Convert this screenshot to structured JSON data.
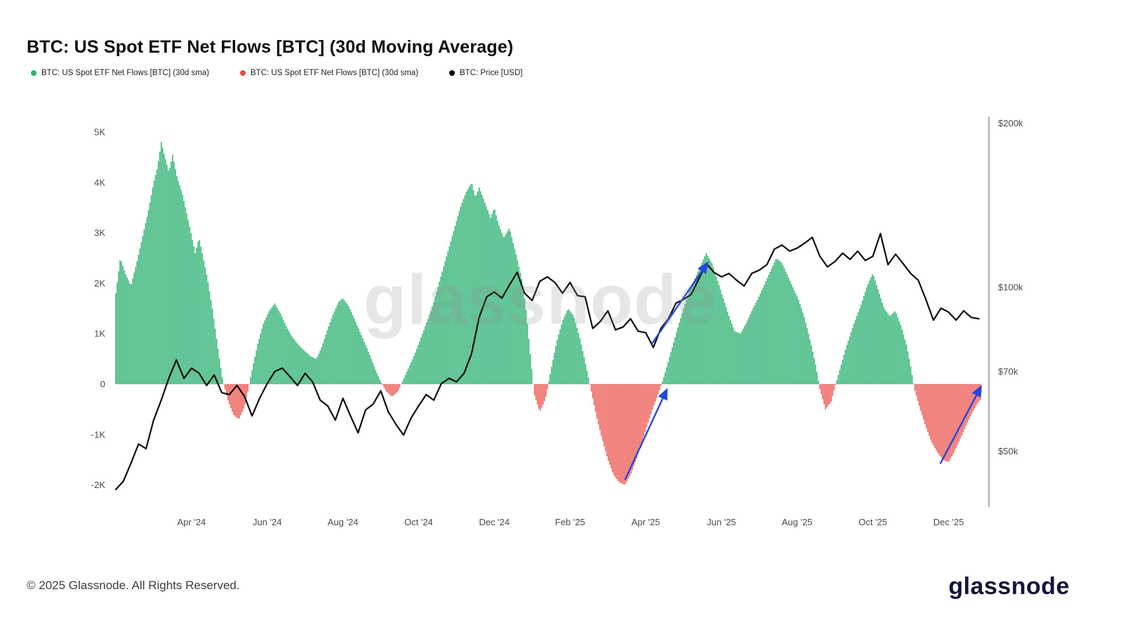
{
  "title": "BTC: US Spot ETF Net Flows [BTC] (30d Moving Average)",
  "legend": [
    {
      "label": "BTC: US Spot ETF Net Flows [BTC] (30d sma)",
      "color": "#2eb271"
    },
    {
      "label": "BTC: US Spot ETF Net Flows [BTC] (30d sma)",
      "color": "#e24a45"
    },
    {
      "label": "BTC: Price [USD]",
      "color": "#000000"
    }
  ],
  "watermark": "glassnode",
  "footer": {
    "copyright": "© 2025 Glassnode. All Rights Reserved.",
    "brand": "glassnode"
  },
  "chart_data": {
    "type": "bar+line",
    "title": "BTC: US Spot ETF Net Flows [BTC] (30d Moving Average)",
    "x_unit": "months since Feb 2024 (t=0 -> Feb '24)",
    "x_range": [
      0,
      22.9
    ],
    "x_ticks": [
      {
        "t": 2,
        "label": "Apr '24"
      },
      {
        "t": 4,
        "label": "Jun '24"
      },
      {
        "t": 6,
        "label": "Aug '24"
      },
      {
        "t": 8,
        "label": "Oct '24"
      },
      {
        "t": 10,
        "label": "Dec '24"
      },
      {
        "t": 12,
        "label": "Feb '25"
      },
      {
        "t": 14,
        "label": "Apr '25"
      },
      {
        "t": 16,
        "label": "Jun '25"
      },
      {
        "t": 18,
        "label": "Aug '25"
      },
      {
        "t": 20,
        "label": "Oct '25"
      },
      {
        "t": 22,
        "label": "Dec '25"
      }
    ],
    "left_axis": {
      "title": "Net Flows (BTC, 30d sma)",
      "ticks": [
        {
          "value": 5000,
          "label": "5K"
        },
        {
          "value": 4000,
          "label": "4K"
        },
        {
          "value": 3000,
          "label": "3K"
        },
        {
          "value": 2000,
          "label": "2K"
        },
        {
          "value": 1000,
          "label": "1K"
        },
        {
          "value": 0,
          "label": "0"
        },
        {
          "value": -1000,
          "label": "-1K"
        },
        {
          "value": -2000,
          "label": "-2K"
        }
      ]
    },
    "right_axis": {
      "title": "BTC Price (USD, log scale)",
      "ticks": [
        {
          "value": 200000,
          "label": "$200k"
        },
        {
          "value": 100000,
          "label": "$100k"
        },
        {
          "value": 70000,
          "label": "$70k"
        },
        {
          "value": 50000,
          "label": "$50k"
        }
      ]
    },
    "bar_colors": {
      "positive": "#2eb271",
      "negative": "#ec5a54"
    },
    "line_color": "#0d0d0d",
    "annotation_color": "#2447e0",
    "sampling_note": "flows_sma_btc are keyframes [t_months, net_flow_btc] read off the chart; daily bars are linearly interpolated between keyframes. price_usd are [t_months, price_usd] points.",
    "flows_sma_btc": [
      [
        0,
        1800
      ],
      [
        0.12,
        2500
      ],
      [
        0.25,
        2200
      ],
      [
        0.4,
        1950
      ],
      [
        0.55,
        2400
      ],
      [
        0.7,
        2900
      ],
      [
        0.85,
        3400
      ],
      [
        1.0,
        4000
      ],
      [
        1.1,
        4300
      ],
      [
        1.2,
        4800
      ],
      [
        1.3,
        4500
      ],
      [
        1.4,
        4200
      ],
      [
        1.5,
        4550
      ],
      [
        1.62,
        4100
      ],
      [
        1.75,
        3800
      ],
      [
        1.9,
        3300
      ],
      [
        2.0,
        2950
      ],
      [
        2.1,
        2600
      ],
      [
        2.2,
        2900
      ],
      [
        2.3,
        2550
      ],
      [
        2.42,
        2100
      ],
      [
        2.55,
        1500
      ],
      [
        2.7,
        700
      ],
      [
        2.82,
        100
      ],
      [
        2.95,
        -300
      ],
      [
        3.1,
        -600
      ],
      [
        3.25,
        -700
      ],
      [
        3.4,
        -450
      ],
      [
        3.5,
        -100
      ],
      [
        3.62,
        350
      ],
      [
        3.75,
        800
      ],
      [
        3.9,
        1200
      ],
      [
        4.05,
        1450
      ],
      [
        4.2,
        1600
      ],
      [
        4.35,
        1400
      ],
      [
        4.5,
        1150
      ],
      [
        4.65,
        950
      ],
      [
        4.8,
        800
      ],
      [
        5.0,
        650
      ],
      [
        5.15,
        550
      ],
      [
        5.3,
        500
      ],
      [
        5.45,
        750
      ],
      [
        5.6,
        1100
      ],
      [
        5.75,
        1400
      ],
      [
        5.9,
        1650
      ],
      [
        6.0,
        1700
      ],
      [
        6.15,
        1550
      ],
      [
        6.3,
        1300
      ],
      [
        6.5,
        950
      ],
      [
        6.7,
        600
      ],
      [
        6.85,
        300
      ],
      [
        7.0,
        50
      ],
      [
        7.15,
        -150
      ],
      [
        7.3,
        -250
      ],
      [
        7.45,
        -150
      ],
      [
        7.6,
        100
      ],
      [
        7.75,
        350
      ],
      [
        7.9,
        600
      ],
      [
        8.05,
        900
      ],
      [
        8.2,
        1200
      ],
      [
        8.35,
        1500
      ],
      [
        8.5,
        1900
      ],
      [
        8.65,
        2300
      ],
      [
        8.8,
        2700
      ],
      [
        8.95,
        3100
      ],
      [
        9.1,
        3500
      ],
      [
        9.25,
        3800
      ],
      [
        9.4,
        4000
      ],
      [
        9.5,
        3700
      ],
      [
        9.6,
        3900
      ],
      [
        9.75,
        3600
      ],
      [
        9.9,
        3300
      ],
      [
        10.0,
        3500
      ],
      [
        10.1,
        3200
      ],
      [
        10.25,
        2900
      ],
      [
        10.4,
        3100
      ],
      [
        10.5,
        2800
      ],
      [
        10.6,
        2500
      ],
      [
        10.75,
        2000
      ],
      [
        10.85,
        1400
      ],
      [
        10.95,
        600
      ],
      [
        11.05,
        -200
      ],
      [
        11.2,
        -550
      ],
      [
        11.35,
        -300
      ],
      [
        11.5,
        300
      ],
      [
        11.65,
        850
      ],
      [
        11.8,
        1250
      ],
      [
        11.95,
        1500
      ],
      [
        12.1,
        1350
      ],
      [
        12.25,
        950
      ],
      [
        12.4,
        450
      ],
      [
        12.55,
        -100
      ],
      [
        12.7,
        -650
      ],
      [
        12.85,
        -1100
      ],
      [
        13.0,
        -1500
      ],
      [
        13.15,
        -1800
      ],
      [
        13.3,
        -1950
      ],
      [
        13.45,
        -2000
      ],
      [
        13.6,
        -1800
      ],
      [
        13.75,
        -1500
      ],
      [
        13.9,
        -1150
      ],
      [
        14.05,
        -800
      ],
      [
        14.2,
        -450
      ],
      [
        14.35,
        -150
      ],
      [
        14.5,
        200
      ],
      [
        14.65,
        600
      ],
      [
        14.8,
        1000
      ],
      [
        15.0,
        1500
      ],
      [
        15.15,
        1850
      ],
      [
        15.3,
        2100
      ],
      [
        15.45,
        2350
      ],
      [
        15.6,
        2600
      ],
      [
        15.75,
        2400
      ],
      [
        15.9,
        2050
      ],
      [
        16.05,
        1700
      ],
      [
        16.2,
        1350
      ],
      [
        16.35,
        1050
      ],
      [
        16.5,
        1000
      ],
      [
        16.65,
        1200
      ],
      [
        16.8,
        1450
      ],
      [
        17.0,
        1750
      ],
      [
        17.15,
        2000
      ],
      [
        17.3,
        2250
      ],
      [
        17.45,
        2500
      ],
      [
        17.6,
        2400
      ],
      [
        17.75,
        2150
      ],
      [
        17.9,
        1900
      ],
      [
        18.05,
        1650
      ],
      [
        18.2,
        1300
      ],
      [
        18.35,
        850
      ],
      [
        18.5,
        350
      ],
      [
        18.6,
        -100
      ],
      [
        18.75,
        -500
      ],
      [
        18.9,
        -350
      ],
      [
        19.0,
        -50
      ],
      [
        19.15,
        350
      ],
      [
        19.3,
        750
      ],
      [
        19.5,
        1200
      ],
      [
        19.7,
        1600
      ],
      [
        19.85,
        1950
      ],
      [
        20.0,
        2200
      ],
      [
        20.15,
        1850
      ],
      [
        20.3,
        1500
      ],
      [
        20.45,
        1350
      ],
      [
        20.6,
        1450
      ],
      [
        20.75,
        1150
      ],
      [
        20.9,
        750
      ],
      [
        21.0,
        350
      ],
      [
        21.1,
        -100
      ],
      [
        21.25,
        -500
      ],
      [
        21.4,
        -850
      ],
      [
        21.55,
        -1150
      ],
      [
        21.7,
        -1350
      ],
      [
        21.85,
        -1500
      ],
      [
        22.0,
        -1550
      ],
      [
        22.15,
        -1350
      ],
      [
        22.3,
        -1100
      ],
      [
        22.45,
        -850
      ],
      [
        22.6,
        -600
      ],
      [
        22.75,
        -400
      ],
      [
        22.85,
        -300
      ]
    ],
    "price_usd": [
      [
        0,
        42500
      ],
      [
        0.2,
        44000
      ],
      [
        0.4,
        47500
      ],
      [
        0.6,
        51500
      ],
      [
        0.8,
        50500
      ],
      [
        1.0,
        57000
      ],
      [
        1.2,
        62000
      ],
      [
        1.4,
        68000
      ],
      [
        1.6,
        73500
      ],
      [
        1.8,
        68000
      ],
      [
        2.0,
        71000
      ],
      [
        2.2,
        69500
      ],
      [
        2.4,
        66000
      ],
      [
        2.6,
        69000
      ],
      [
        2.8,
        64000
      ],
      [
        3.0,
        63500
      ],
      [
        3.2,
        66000
      ],
      [
        3.4,
        63000
      ],
      [
        3.6,
        58000
      ],
      [
        3.8,
        62500
      ],
      [
        4.0,
        66500
      ],
      [
        4.2,
        70000
      ],
      [
        4.4,
        71000
      ],
      [
        4.6,
        68500
      ],
      [
        4.8,
        66000
      ],
      [
        5.0,
        69500
      ],
      [
        5.2,
        67000
      ],
      [
        5.4,
        62000
      ],
      [
        5.6,
        60500
      ],
      [
        5.8,
        57000
      ],
      [
        6.0,
        62500
      ],
      [
        6.2,
        58000
      ],
      [
        6.4,
        54000
      ],
      [
        6.6,
        59500
      ],
      [
        6.8,
        61000
      ],
      [
        7.0,
        64500
      ],
      [
        7.2,
        59000
      ],
      [
        7.4,
        56000
      ],
      [
        7.6,
        53500
      ],
      [
        7.8,
        57500
      ],
      [
        8.0,
        60500
      ],
      [
        8.2,
        63500
      ],
      [
        8.4,
        62000
      ],
      [
        8.6,
        66500
      ],
      [
        8.8,
        68000
      ],
      [
        9.0,
        67000
      ],
      [
        9.2,
        69500
      ],
      [
        9.4,
        75500
      ],
      [
        9.6,
        88000
      ],
      [
        9.8,
        96000
      ],
      [
        10.0,
        98000
      ],
      [
        10.2,
        95500
      ],
      [
        10.4,
        101000
      ],
      [
        10.6,
        106500
      ],
      [
        10.8,
        97500
      ],
      [
        11.0,
        94500
      ],
      [
        11.2,
        102500
      ],
      [
        11.4,
        104500
      ],
      [
        11.6,
        102000
      ],
      [
        11.8,
        97500
      ],
      [
        12.0,
        102000
      ],
      [
        12.2,
        96500
      ],
      [
        12.4,
        96000
      ],
      [
        12.6,
        84000
      ],
      [
        12.8,
        86500
      ],
      [
        13.0,
        90500
      ],
      [
        13.2,
        83500
      ],
      [
        13.4,
        84500
      ],
      [
        13.6,
        87500
      ],
      [
        13.8,
        83000
      ],
      [
        14.0,
        82500
      ],
      [
        14.2,
        77500
      ],
      [
        14.4,
        84000
      ],
      [
        14.6,
        87500
      ],
      [
        14.8,
        93500
      ],
      [
        15.0,
        95000
      ],
      [
        15.2,
        97000
      ],
      [
        15.4,
        103500
      ],
      [
        15.6,
        110500
      ],
      [
        15.8,
        106500
      ],
      [
        16.0,
        104500
      ],
      [
        16.2,
        106000
      ],
      [
        16.4,
        103000
      ],
      [
        16.6,
        100500
      ],
      [
        16.8,
        106000
      ],
      [
        17.0,
        107500
      ],
      [
        17.2,
        110000
      ],
      [
        17.4,
        117500
      ],
      [
        17.6,
        119500
      ],
      [
        17.8,
        116500
      ],
      [
        18.0,
        118000
      ],
      [
        18.2,
        120500
      ],
      [
        18.4,
        123500
      ],
      [
        18.6,
        114000
      ],
      [
        18.8,
        109000
      ],
      [
        19.0,
        111500
      ],
      [
        19.2,
        115500
      ],
      [
        19.4,
        112500
      ],
      [
        19.6,
        116500
      ],
      [
        19.8,
        112000
      ],
      [
        20.0,
        114000
      ],
      [
        20.2,
        125500
      ],
      [
        20.4,
        110000
      ],
      [
        20.6,
        115000
      ],
      [
        20.8,
        110500
      ],
      [
        21.0,
        106000
      ],
      [
        21.2,
        103000
      ],
      [
        21.4,
        95000
      ],
      [
        21.6,
        87000
      ],
      [
        21.8,
        91500
      ],
      [
        22.0,
        90000
      ],
      [
        22.2,
        87000
      ],
      [
        22.4,
        90500
      ],
      [
        22.6,
        88000
      ],
      [
        22.8,
        87500
      ]
    ],
    "annotations": [
      {
        "type": "arrow",
        "from": {
          "t": 13.45,
          "flow": -1900
        },
        "to": {
          "t": 14.55,
          "flow": -120
        }
      },
      {
        "type": "arrow",
        "from": {
          "t": 14.15,
          "price": 78500
        },
        "to": {
          "t": 15.62,
          "price": 110500
        }
      },
      {
        "type": "arrow",
        "from": {
          "t": 21.78,
          "flow": -1580
        },
        "to": {
          "t": 22.85,
          "flow": -60
        }
      }
    ]
  }
}
